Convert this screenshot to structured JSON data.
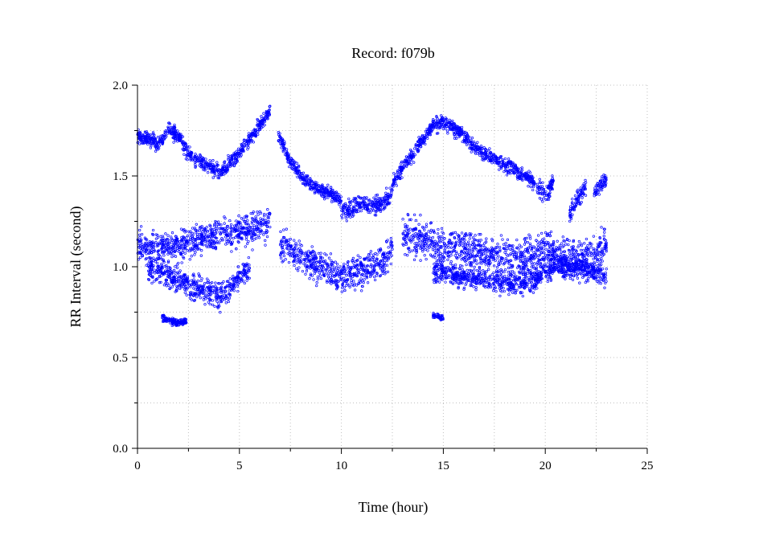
{
  "chart_data": {
    "type": "scatter",
    "title": "Record:  f079b",
    "xlabel": "Time (hour)",
    "ylabel": "RR Interval (second)",
    "xlim": [
      0,
      25
    ],
    "ylim": [
      0,
      2
    ],
    "xticks": [
      0,
      5,
      10,
      15,
      20,
      25
    ],
    "xtick_labels": [
      "0",
      "5",
      "10",
      "15",
      "20",
      "25"
    ],
    "yticks": [
      0,
      0.5,
      1,
      1.5,
      2
    ],
    "ytick_labels": [
      "0.0",
      "0.5",
      "1.0",
      "1.5",
      "2.0"
    ],
    "grid": true,
    "marker_color": "#0000ff",
    "series": [
      {
        "bands": [
          {
            "x": [
              0,
              0.5,
              1,
              1.5,
              2,
              2.5,
              3,
              3.5,
              4,
              4.5,
              5,
              5.5,
              6,
              6.5
            ],
            "y": [
              1.72,
              1.7,
              1.68,
              1.75,
              1.72,
              1.62,
              1.58,
              1.55,
              1.52,
              1.56,
              1.62,
              1.7,
              1.78,
              1.86
            ],
            "spread": 0.04
          },
          {
            "x": [
              6.9,
              7.5,
              8,
              8.5,
              9,
              9.5,
              10
            ],
            "y": [
              1.72,
              1.58,
              1.5,
              1.45,
              1.42,
              1.4,
              1.36
            ],
            "spread": 0.035
          },
          {
            "x": [
              10,
              10.5,
              11,
              11.5,
              12,
              12.5
            ],
            "y": [
              1.3,
              1.32,
              1.35,
              1.33,
              1.35,
              1.4
            ],
            "spread": 0.05
          },
          {
            "x": [
              12.5,
              13,
              13.5,
              14,
              14.5,
              15,
              15.5,
              16,
              16.5,
              17,
              17.5,
              18,
              18.5,
              19,
              19.5
            ],
            "y": [
              1.45,
              1.55,
              1.62,
              1.7,
              1.78,
              1.8,
              1.76,
              1.72,
              1.66,
              1.62,
              1.6,
              1.56,
              1.54,
              1.5,
              1.46
            ],
            "spread": 0.04
          },
          {
            "x": [
              19.6,
              20,
              20.4
            ],
            "y": [
              1.45,
              1.4,
              1.46
            ],
            "spread": 0.05
          },
          {
            "x": [
              21.2,
              21.6,
              22
            ],
            "y": [
              1.28,
              1.38,
              1.44
            ],
            "spread": 0.05
          },
          {
            "x": [
              22.4,
              22.7,
              23
            ],
            "y": [
              1.4,
              1.45,
              1.48
            ],
            "spread": 0.04
          },
          {
            "x": [
              0,
              1,
              2,
              3,
              4,
              5,
              6,
              6.5
            ],
            "y": [
              1.12,
              1.1,
              1.12,
              1.15,
              1.18,
              1.2,
              1.22,
              1.26
            ],
            "spread": 0.08
          },
          {
            "x": [
              0.5,
              1.5,
              2.5,
              3.5,
              4,
              4.5,
              5,
              5.5
            ],
            "y": [
              1.0,
              0.95,
              0.9,
              0.86,
              0.84,
              0.88,
              0.95,
              1.0
            ],
            "spread": 0.07
          },
          {
            "x": [
              7,
              8,
              9,
              10,
              11,
              12,
              12.5
            ],
            "y": [
              1.12,
              1.05,
              1.0,
              0.95,
              0.98,
              1.02,
              1.1
            ],
            "spread": 0.09
          },
          {
            "x": [
              13,
              14,
              15,
              16,
              17,
              18,
              19,
              20,
              21,
              22,
              23
            ],
            "y": [
              1.18,
              1.15,
              1.12,
              1.1,
              1.08,
              1.05,
              1.05,
              1.1,
              1.05,
              1.05,
              1.1
            ],
            "spread": 0.1
          },
          {
            "x": [
              14.5,
              15.5,
              16.5,
              17.5,
              18.5,
              19.5,
              20.5,
              22,
              23
            ],
            "y": [
              0.98,
              0.96,
              0.94,
              0.92,
              0.9,
              0.93,
              1.0,
              0.98,
              0.95
            ],
            "spread": 0.06
          },
          {
            "x": [
              1.2,
              1.6,
              2.0,
              2.4
            ],
            "y": [
              0.72,
              0.7,
              0.69,
              0.7
            ],
            "spread": 0.02
          },
          {
            "x": [
              14.5,
              15.0
            ],
            "y": [
              0.73,
              0.72
            ],
            "spread": 0.015
          }
        ]
      }
    ]
  }
}
